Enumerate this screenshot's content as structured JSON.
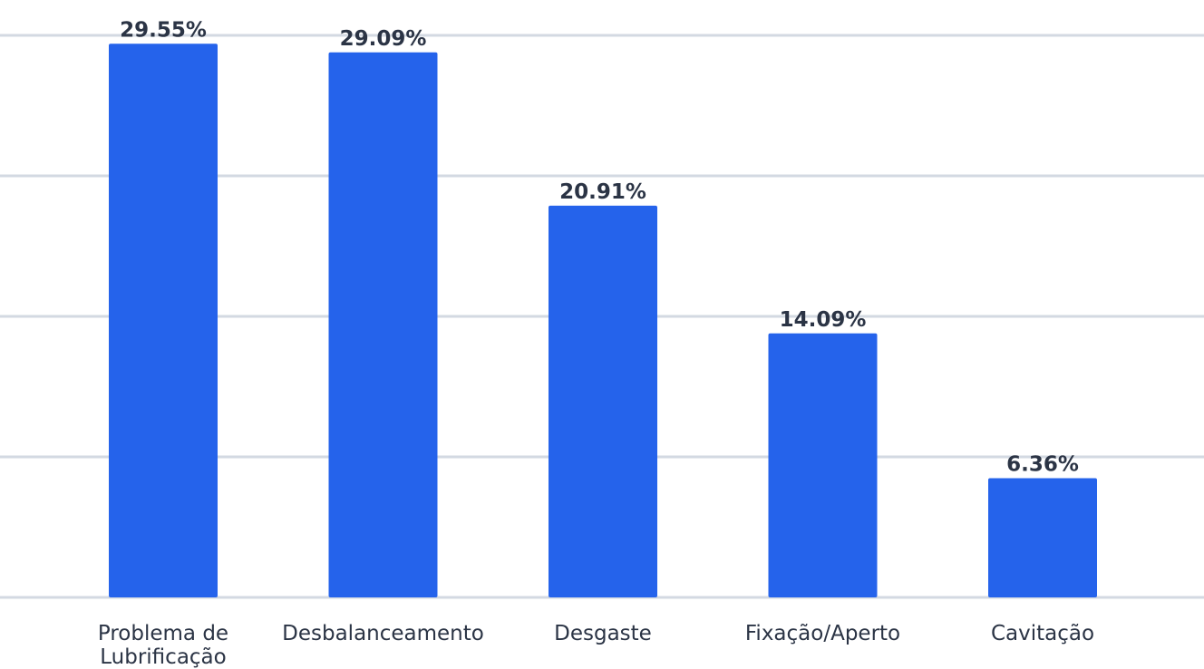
{
  "chart_data": {
    "type": "bar",
    "title": "",
    "xlabel": "",
    "ylabel": "",
    "categories": [
      [
        "Problema de",
        "Lubrificação"
      ],
      [
        "Desbalanceamento"
      ],
      [
        "Desgaste"
      ],
      [
        "Fixação/Aperto"
      ],
      [
        "Cavitação"
      ]
    ],
    "values": [
      29.55,
      29.09,
      20.91,
      14.09,
      6.36
    ],
    "value_labels": [
      "29.55%",
      "29.09%",
      "20.91%",
      "14.09%",
      "6.36%"
    ],
    "ylim": [
      0,
      30
    ],
    "grid": true,
    "bar_color": "#2563eb",
    "grid_color": "#d3d9e2",
    "text_color": "#2b3445"
  }
}
